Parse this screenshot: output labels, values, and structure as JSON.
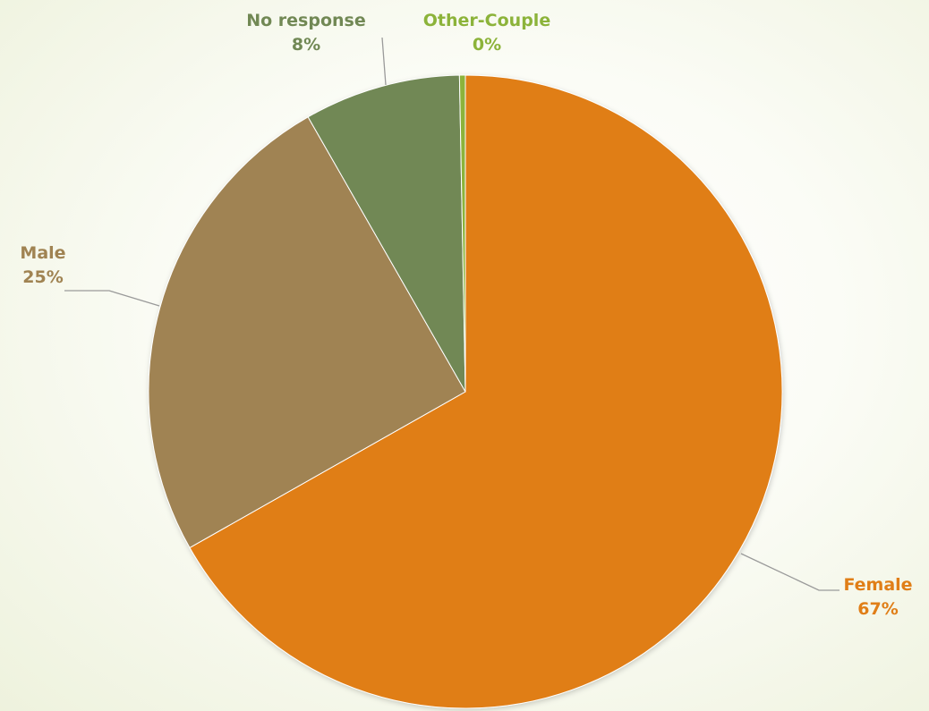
{
  "chart_data": {
    "type": "pie",
    "title": "",
    "slices": [
      {
        "label": "Female",
        "value": 67,
        "display": "67%",
        "color": "#e07e17"
      },
      {
        "label": "Male",
        "value": 25,
        "display": "25%",
        "color": "#a08352"
      },
      {
        "label": "No response",
        "value": 8,
        "display": "8%",
        "color": "#718854"
      },
      {
        "label": "Other-Couple",
        "value": 0.3,
        "display": "0%",
        "color": "#8cb33a"
      }
    ],
    "start_angle_deg": 0,
    "direction": "clockwise",
    "legend": "none"
  }
}
